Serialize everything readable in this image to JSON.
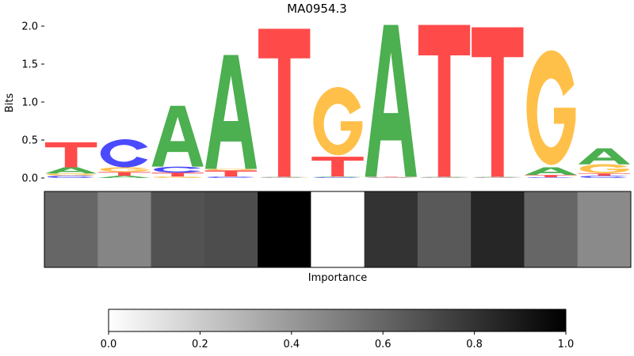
{
  "chart_data": [
    {
      "type": "sequence-logo",
      "title": "MA0954.3",
      "ylabel": "Bits",
      "ylim": [
        0,
        2.0
      ],
      "yticks": [
        "0.0",
        "0.5",
        "1.0",
        "1.5",
        "2.0"
      ],
      "letter_colors": {
        "A": "#4caf50",
        "C": "#4a4aff",
        "G": "#ffc04a",
        "T": "#ff4a4a"
      },
      "positions": [
        [
          {
            "base": "C",
            "bits": 0.03
          },
          {
            "base": "G",
            "bits": 0.03
          },
          {
            "base": "A",
            "bits": 0.08
          },
          {
            "base": "T",
            "bits": 0.33
          }
        ],
        [
          {
            "base": "A",
            "bits": 0.03
          },
          {
            "base": "T",
            "bits": 0.05
          },
          {
            "base": "G",
            "bits": 0.06
          },
          {
            "base": "C",
            "bits": 0.37
          }
        ],
        [
          {
            "base": "G",
            "bits": 0.02
          },
          {
            "base": "T",
            "bits": 0.05
          },
          {
            "base": "C",
            "bits": 0.08
          },
          {
            "base": "A",
            "bits": 0.8
          }
        ],
        [
          {
            "base": "C",
            "bits": 0.02
          },
          {
            "base": "T",
            "bits": 0.08
          },
          {
            "base": "G",
            "bits": 0.02
          },
          {
            "base": "A",
            "bits": 1.5
          }
        ],
        [
          {
            "base": "C",
            "bits": 0.005
          },
          {
            "base": "G",
            "bits": 0.005
          },
          {
            "base": "A",
            "bits": 0.005
          },
          {
            "base": "T",
            "bits": 1.95
          }
        ],
        [
          {
            "base": "C",
            "bits": 0.01
          },
          {
            "base": "A",
            "bits": 0.01
          },
          {
            "base": "T",
            "bits": 0.26
          },
          {
            "base": "G",
            "bits": 0.9
          }
        ],
        [
          {
            "base": "C",
            "bits": 0.005
          },
          {
            "base": "G",
            "bits": 0.005
          },
          {
            "base": "T",
            "bits": 0.005
          },
          {
            "base": "A",
            "bits": 2.0
          }
        ],
        [
          {
            "base": "C",
            "bits": 0.005
          },
          {
            "base": "G",
            "bits": 0.005
          },
          {
            "base": "A",
            "bits": 0.005
          },
          {
            "base": "T",
            "bits": 2.0
          }
        ],
        [
          {
            "base": "C",
            "bits": 0.005
          },
          {
            "base": "G",
            "bits": 0.005
          },
          {
            "base": "A",
            "bits": 0.005
          },
          {
            "base": "T",
            "bits": 1.97
          }
        ],
        [
          {
            "base": "C",
            "bits": 0.01
          },
          {
            "base": "T",
            "bits": 0.03
          },
          {
            "base": "A",
            "bits": 0.1
          },
          {
            "base": "G",
            "bits": 1.51
          }
        ],
        [
          {
            "base": "C",
            "bits": 0.03
          },
          {
            "base": "T",
            "bits": 0.03
          },
          {
            "base": "G",
            "bits": 0.12
          },
          {
            "base": "A",
            "bits": 0.21
          }
        ]
      ]
    },
    {
      "type": "heatmap",
      "xlabel": "Importance",
      "colormap": "Greys",
      "values": [
        0.6,
        0.48,
        0.68,
        0.7,
        1.0,
        0.0,
        0.8,
        0.65,
        0.85,
        0.6,
        0.46
      ],
      "colorbar": {
        "range": [
          0,
          1.0
        ],
        "ticks": [
          "0.0",
          "0.2",
          "0.4",
          "0.6",
          "0.8",
          "1.0"
        ]
      }
    }
  ]
}
